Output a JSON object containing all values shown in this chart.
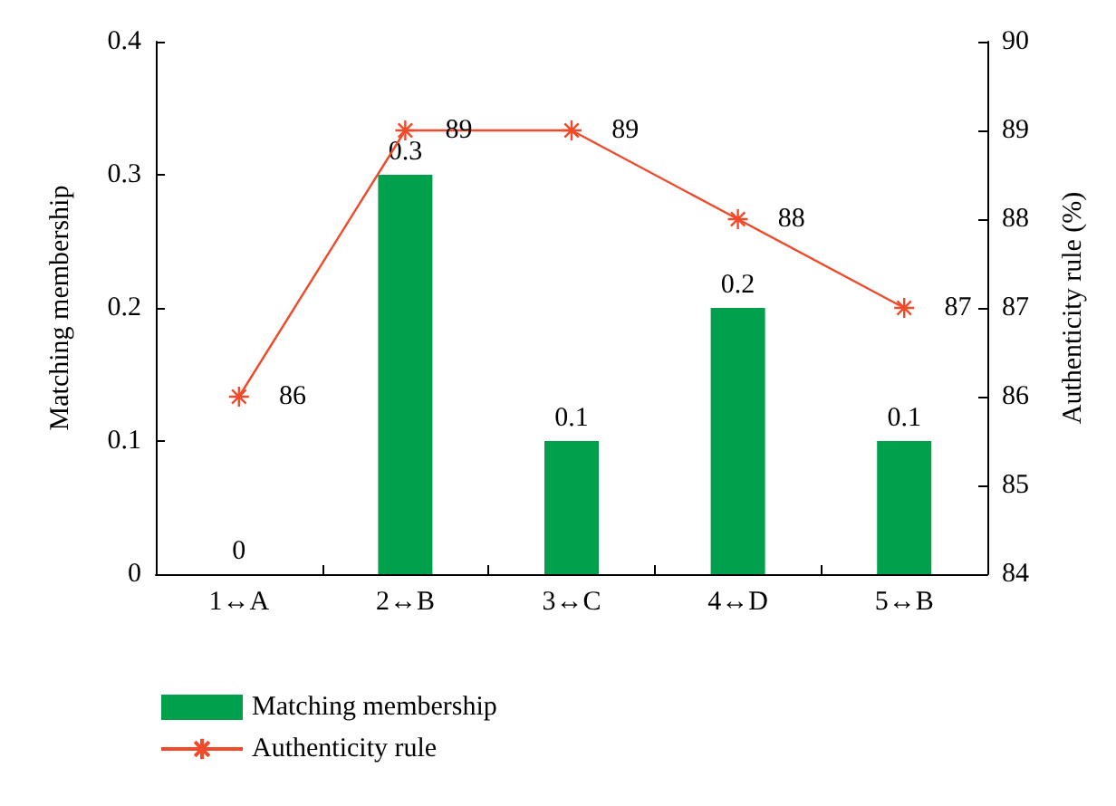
{
  "chart_data": {
    "type": "bar",
    "categories": [
      "1↔A",
      "2↔B",
      "3↔C",
      "4↔D",
      "5↔B"
    ],
    "series": [
      {
        "name": "Matching membership",
        "color": "#00a04c",
        "values": [
          0,
          0.3,
          0.1,
          0.2,
          0.1
        ]
      },
      {
        "name": "Authenticity rule",
        "type": "line",
        "axis": "y2",
        "color": "#f04a2a",
        "values": [
          86,
          89,
          89,
          88,
          87
        ]
      }
    ],
    "ylabel": "Matching membership",
    "y2label": "Authenticity rule (%)",
    "ylim": [
      0,
      0.4
    ],
    "yticks": [
      0,
      0.1,
      0.2,
      0.3,
      0.4
    ],
    "y2lim": [
      84,
      90
    ],
    "y2ticks": [
      84,
      85,
      86,
      87,
      88,
      89,
      90
    ],
    "data_labels": true,
    "legend": "bottom left",
    "marker": "cross"
  }
}
